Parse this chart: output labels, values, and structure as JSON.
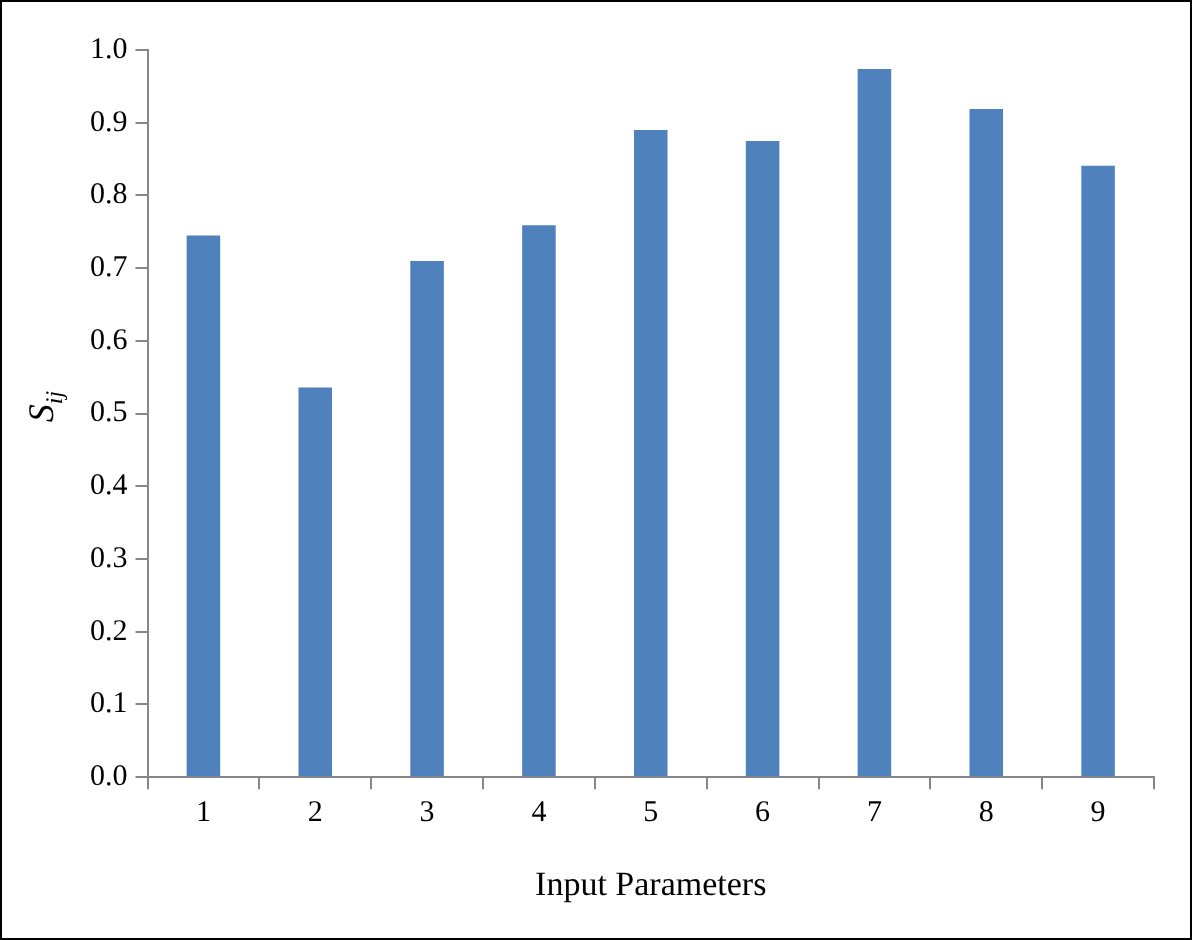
{
  "chart_data": {
    "type": "bar",
    "xlabel": "Input Parameters",
    "ylabel": "S$_{ij}$",
    "categories": [
      "1",
      "2",
      "3",
      "4",
      "5",
      "6",
      "7",
      "8",
      "9"
    ],
    "values": [
      0.745,
      0.536,
      0.71,
      0.759,
      0.89,
      0.875,
      0.974,
      0.919,
      0.841
    ],
    "color": "#4f81bd",
    "ylim": [
      0,
      1
    ],
    "yticks": [
      {
        "value": 0,
        "label": "0.0"
      },
      {
        "value": 0.1,
        "label": "0.1"
      },
      {
        "value": 0.2,
        "label": "0.2"
      },
      {
        "value": 0.3,
        "label": "0.3"
      },
      {
        "value": 0.4,
        "label": "0.4"
      },
      {
        "value": 0.5,
        "label": "0.5"
      },
      {
        "value": 0.6,
        "label": "0.6"
      },
      {
        "value": 0.7,
        "label": "0.7"
      },
      {
        "value": 0.8,
        "label": "0.8"
      },
      {
        "value": 0.9,
        "label": "0.9"
      },
      {
        "value": 1,
        "label": "1.0"
      }
    ],
    "grid": false,
    "legend": false
  }
}
